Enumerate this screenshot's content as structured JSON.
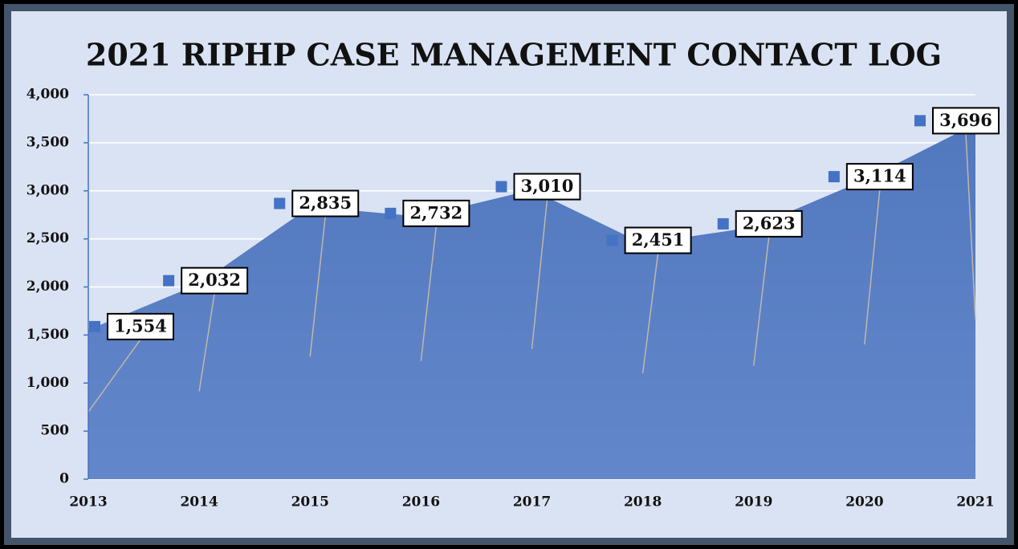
{
  "chart_data": {
    "type": "area",
    "title": "2021 RIPHP CASE MANAGEMENT CONTACT LOG",
    "categories": [
      "2013",
      "2014",
      "2015",
      "2016",
      "2017",
      "2018",
      "2019",
      "2020",
      "2021"
    ],
    "series": [
      {
        "color": "#4a72bb",
        "values": [
          1554,
          2032,
          2835,
          2732,
          3010,
          2451,
          2623,
          3114,
          3696
        ],
        "value_labels": [
          "1,554",
          "2,032",
          "2,835",
          "2,732",
          "3,010",
          "2,451",
          "2,623",
          "3,114",
          "3,696"
        ]
      }
    ],
    "ylim": [
      0,
      4000
    ],
    "yticks": [
      0,
      500,
      {
        "value": 1000,
        "label": "1,000"
      },
      {
        "value": 1500,
        "label": "1,500"
      },
      {
        "value": 2000,
        "label": "2,000"
      },
      {
        "value": 2500,
        "label": "2,500"
      },
      {
        "value": 3000,
        "label": "3,000"
      },
      {
        "value": 3500,
        "label": "3,500"
      },
      {
        "value": 4000,
        "label": "4,000"
      }
    ],
    "grid": true
  }
}
